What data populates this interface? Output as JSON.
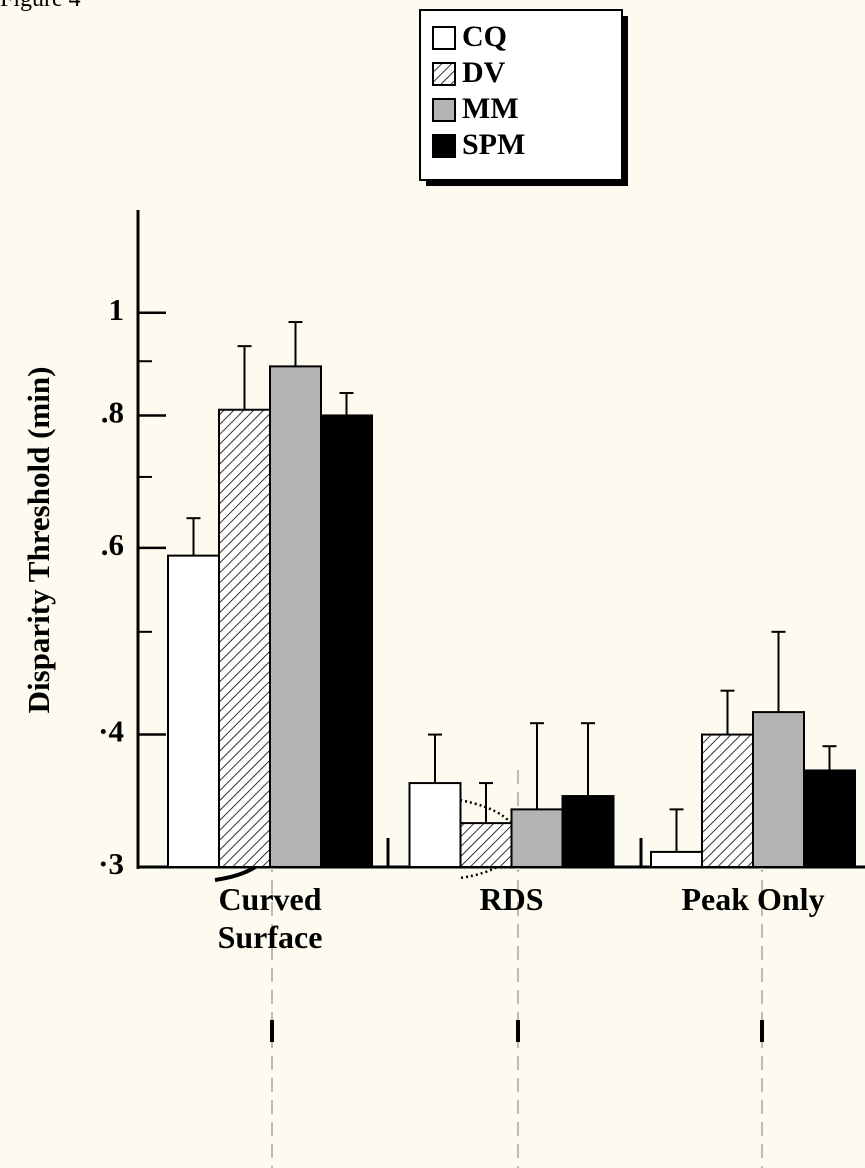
{
  "chart_data": {
    "type": "bar",
    "title": "Figure 4",
    "ylabel": "Disparity Threshold (min)",
    "categories": [
      "Curved Surface",
      "RDS",
      "Peak Only"
    ],
    "series": [
      {
        "name": "CQ",
        "color": "#ffffff",
        "values": [
          0.59,
          0.36,
          0.31
        ],
        "errors": [
          0.05,
          0.04,
          0.03
        ]
      },
      {
        "name": "DV",
        "color": "#ffffff",
        "hatch": true,
        "values": [
          0.81,
          0.33,
          0.4
        ],
        "errors": [
          0.12,
          0.03,
          0.04
        ]
      },
      {
        "name": "MM",
        "color": "#b3b3b3",
        "values": [
          0.89,
          0.34,
          0.42
        ],
        "errors": [
          0.09,
          0.07,
          0.08
        ]
      },
      {
        "name": "SPM",
        "color": "#000000",
        "values": [
          0.8,
          0.35,
          0.37
        ],
        "errors": [
          0.04,
          0.06,
          0.02
        ]
      }
    ],
    "ylim": [
      0.3,
      1.25
    ],
    "ylog": true,
    "yticks": [
      {
        "value": 0.3,
        "label": "·3"
      },
      {
        "value": 0.4,
        "label": "·4"
      },
      {
        "value": 0.6,
        "label": ".6"
      },
      {
        "value": 0.8,
        "label": ".8"
      },
      1
    ],
    "yminor": [
      0.5,
      0.7,
      0.9
    ]
  }
}
